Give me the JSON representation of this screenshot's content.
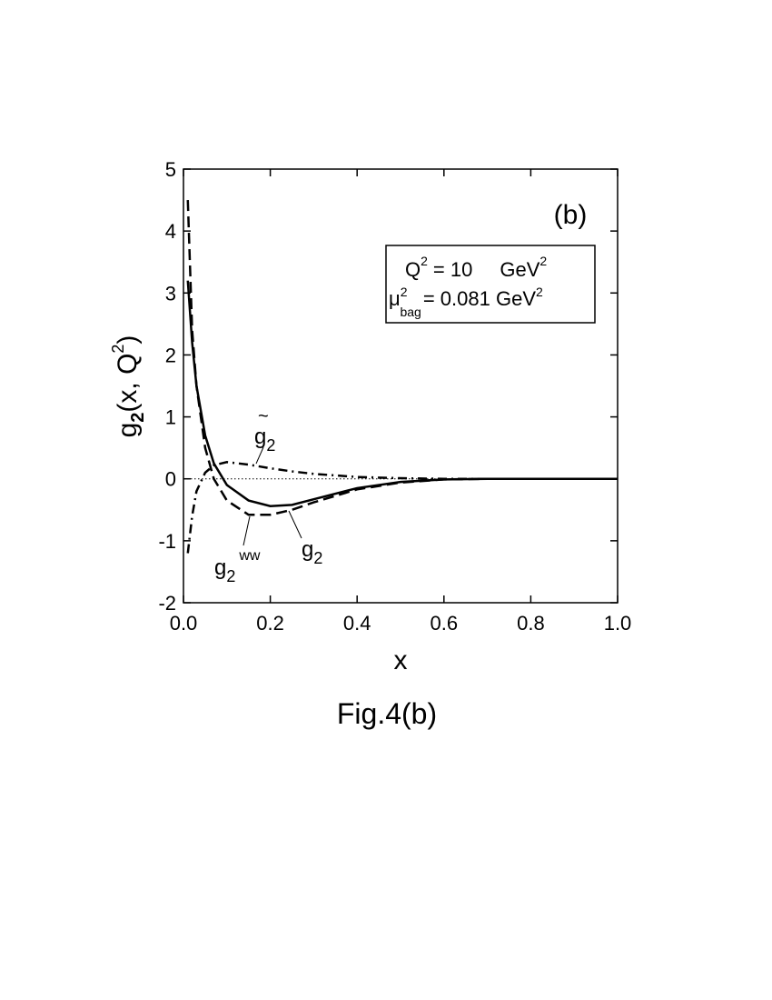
{
  "chart_data": {
    "type": "line",
    "panel_label": "(b)",
    "caption": "Fig.4(b)",
    "x_label": "x",
    "y_label": {
      "base": "g",
      "sub": "2",
      "mid": "(x, Q",
      "sup": "2",
      "end": ")"
    },
    "box": {
      "line1": {
        "q": "Q",
        "q_sup": "2",
        "eq": "=  10",
        "unit": "GeV",
        "unit_sup": "2"
      },
      "line2": {
        "mu": "μ",
        "mu_sup": "2",
        "mu_sub": "bag",
        "eq": "= 0.081 GeV",
        "unit_sup": "2"
      }
    },
    "x": [
      0.01,
      0.02,
      0.03,
      0.05,
      0.07,
      0.1,
      0.15,
      0.2,
      0.25,
      0.3,
      0.4,
      0.5,
      0.6,
      0.7,
      0.8,
      1.0
    ],
    "series": [
      {
        "label": {
          "base": "g",
          "sub": "2"
        },
        "color": "#000000",
        "style": "solid",
        "values": [
          3.2,
          2.2,
          1.5,
          0.7,
          0.25,
          -0.1,
          -0.35,
          -0.44,
          -0.42,
          -0.33,
          -0.15,
          -0.05,
          -0.01,
          0,
          0,
          0
        ]
      },
      {
        "label": {
          "base": "g",
          "sub": "2",
          "sup": "ww"
        },
        "color": "#000000",
        "style": "dashed",
        "values": [
          4.5,
          2.4,
          1.5,
          0.5,
          0.0,
          -0.35,
          -0.58,
          -0.58,
          -0.5,
          -0.38,
          -0.17,
          -0.06,
          -0.01,
          0,
          0,
          0
        ]
      },
      {
        "label": {
          "tilde": "~",
          "base": "g",
          "sub": "2"
        },
        "color": "#000000",
        "style": "dashdot",
        "values": [
          -1.2,
          -0.6,
          -0.2,
          0.1,
          0.22,
          0.27,
          0.23,
          0.17,
          0.12,
          0.08,
          0.03,
          0.01,
          0,
          0,
          0,
          0
        ]
      }
    ],
    "xlim": [
      0,
      1.0
    ],
    "ylim": [
      -2,
      5
    ],
    "xticks": [
      {
        "value": 0,
        "label": "0.0"
      },
      0.2,
      0.4,
      0.6,
      0.8,
      {
        "value": 1.0,
        "label": "1.0"
      }
    ],
    "yticks": [
      -2,
      -1,
      0,
      1,
      2,
      3,
      4,
      5
    ],
    "zero_line": true
  }
}
